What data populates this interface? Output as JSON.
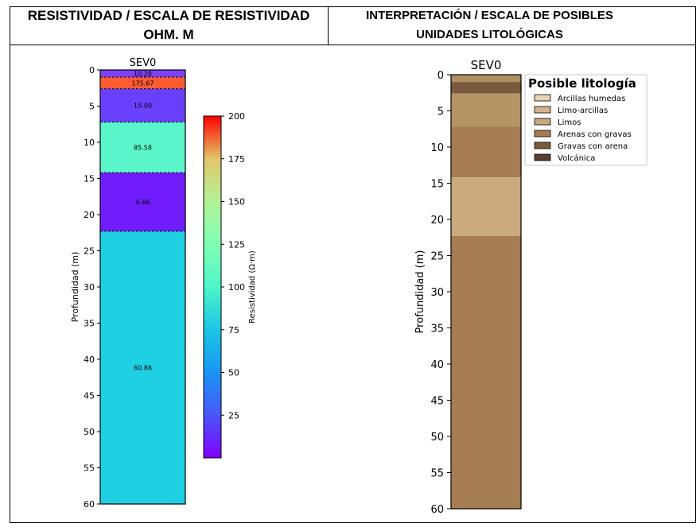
{
  "header": {
    "left_title_line1": "RESISTIVIDAD  / ESCALA DE RESISTIVIDAD",
    "left_title_line2": "OHM. M",
    "right_title_line1": "INTERPRETACIÓN / ESCALA DE POSIBLES",
    "right_title_line2": "UNIDADES LITOLÓGICAS"
  },
  "chart_data": [
    {
      "type": "bar",
      "title": "SEV0",
      "ylabel": "Profundidad (m)",
      "xlabel": "",
      "ylim": [
        0,
        60
      ],
      "inverted_y": true,
      "yticks": [
        0,
        5,
        10,
        15,
        20,
        25,
        30,
        35,
        40,
        45,
        50,
        55,
        60
      ],
      "layers": [
        {
          "top": 0.0,
          "bottom": 1.0,
          "resistivity": 10.28,
          "label": "10.28",
          "color": "#7f40f7"
        },
        {
          "top": 1.0,
          "bottom": 2.6,
          "resistivity": 175.67,
          "label": "175.67",
          "color": "#ff5b30"
        },
        {
          "top": 2.6,
          "bottom": 7.2,
          "resistivity": 15.0,
          "label": "15.00",
          "color": "#6a40ff"
        },
        {
          "top": 7.2,
          "bottom": 14.2,
          "resistivity": 85.58,
          "label": "85.58",
          "color": "#5af5c8"
        },
        {
          "top": 14.2,
          "bottom": 22.3,
          "resistivity": 6.66,
          "label": "6.66",
          "color": "#701cfc"
        },
        {
          "top": 22.3,
          "bottom": 60.0,
          "resistivity": 60.86,
          "label": "60.86",
          "color": "#1fd0e2"
        }
      ],
      "colorbar": {
        "label": "Resistividad (Ω·m)",
        "range": [
          0,
          200
        ],
        "ticks": [
          25,
          50,
          75,
          100,
          125,
          150,
          175,
          200
        ],
        "colormap": "rainbow"
      }
    },
    {
      "type": "bar",
      "title": "SEV0",
      "ylabel": "Profundidad (m)",
      "xlabel": "",
      "ylim": [
        0,
        60
      ],
      "inverted_y": true,
      "yticks": [
        0,
        5,
        10,
        15,
        20,
        25,
        30,
        35,
        40,
        45,
        50,
        55,
        60
      ],
      "layers": [
        {
          "top": 0.0,
          "bottom": 1.0,
          "color": "#b09060"
        },
        {
          "top": 1.0,
          "bottom": 2.6,
          "color": "#7a5a3e"
        },
        {
          "top": 2.6,
          "bottom": 7.2,
          "color": "#b49464"
        },
        {
          "top": 7.2,
          "bottom": 14.2,
          "color": "#a67c52"
        },
        {
          "top": 14.2,
          "bottom": 22.3,
          "color": "#c8aa7e"
        },
        {
          "top": 22.3,
          "bottom": 60.0,
          "color": "#a67c52"
        }
      ],
      "legend": {
        "title": "Posible litología",
        "placement": "top-right",
        "entries": [
          {
            "label": "Arcillas humedas",
            "color": "#e8d2b2"
          },
          {
            "label": "Limo-arcillas",
            "color": "#d2b48c"
          },
          {
            "label": "Limos",
            "color": "#c8aa7e"
          },
          {
            "label": "Arenas con gravas",
            "color": "#a67c52"
          },
          {
            "label": "Gravas con arena",
            "color": "#7a5a3e"
          },
          {
            "label": "Volcánica",
            "color": "#5a4030"
          }
        ]
      }
    }
  ]
}
